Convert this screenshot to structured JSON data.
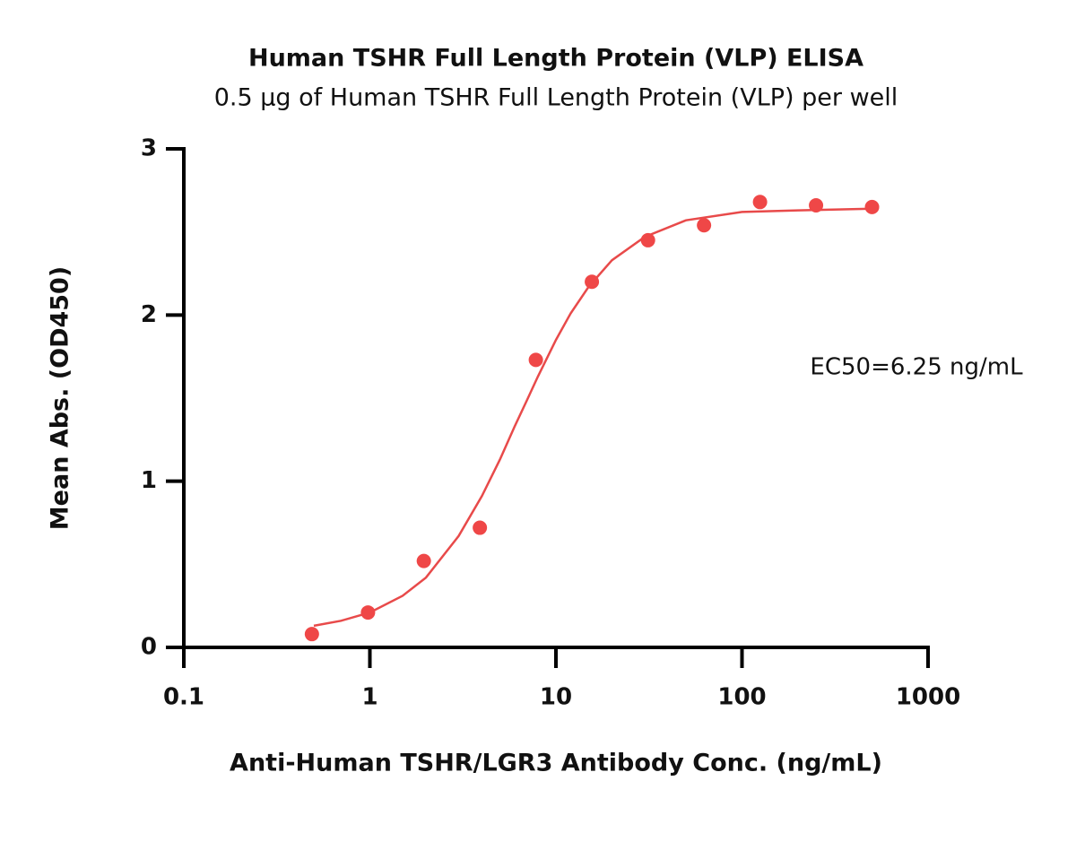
{
  "chart_data": {
    "type": "scatter",
    "title": "Human TSHR Full Length Protein (VLP) ELISA",
    "subtitle": "0.5 µg of Human TSHR Full Length Protein (VLP) per well",
    "x_label": "Anti-Human TSHR/LGR3 Antibody Conc. (ng/mL)",
    "y_label": "Mean Abs. (OD450)",
    "annotation": "EC50=6.25 ng/mL",
    "x_scale": "log",
    "xlim": [
      0.1,
      1000
    ],
    "xticks": [
      0.1,
      1,
      10,
      100,
      1000
    ],
    "ylim": [
      0,
      3
    ],
    "yticks": [
      0,
      1,
      2,
      3
    ],
    "x": [
      0.488,
      0.977,
      1.95,
      3.9,
      7.8,
      15.6,
      31.25,
      62.5,
      125,
      250,
      500
    ],
    "values": [
      0.08,
      0.21,
      0.52,
      0.72,
      1.73,
      2.2,
      2.45,
      2.54,
      2.68,
      2.66,
      2.65
    ],
    "color": "#ef4747",
    "fit": {
      "color": "#e84a4a",
      "x": [
        0.5,
        0.7,
        1,
        1.5,
        2,
        3,
        4,
        5,
        6,
        7,
        8,
        10,
        12,
        15,
        20,
        30,
        50,
        100,
        200,
        500
      ],
      "values": [
        0.13,
        0.16,
        0.21,
        0.31,
        0.42,
        0.67,
        0.91,
        1.13,
        1.33,
        1.49,
        1.63,
        1.85,
        2.01,
        2.17,
        2.33,
        2.47,
        2.57,
        2.62,
        2.63,
        2.64
      ]
    }
  }
}
